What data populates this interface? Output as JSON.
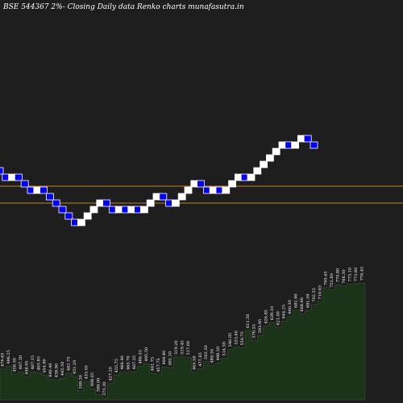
{
  "title": "BSE 544367 2%- Closing Daily data Renko charts munafasutra.in",
  "colors": {
    "background": "#1e1e1e",
    "up_brick": "#ffffff",
    "down_brick": "#0000ff",
    "down_brick_border": "#ffffff",
    "hline": "#c8801a",
    "volume_fill": "#1b3318",
    "volume_stroke": "#3a5a30",
    "label": "#ffffff"
  },
  "chart_data": [
    {
      "type": "renko",
      "brick_percent": 2,
      "direction": [
        "d",
        "d",
        "u",
        "d",
        "d",
        "d",
        "u",
        "d",
        "d",
        "d",
        "d",
        "d",
        "d",
        "u",
        "u",
        "u",
        "u",
        "d",
        "d",
        "u",
        "d",
        "u",
        "d",
        "u",
        "u",
        "u",
        "d",
        "d",
        "u",
        "u",
        "u",
        "u",
        "d",
        "d",
        "u",
        "d",
        "u",
        "u",
        "u",
        "d",
        "u",
        "u",
        "u",
        "u",
        "u",
        "u",
        "d",
        "u",
        "u",
        "d",
        "d"
      ],
      "horizontal_lines_level": [
        231,
        252
      ]
    },
    {
      "type": "area",
      "labels": [
        "476.65",
        "486.25",
        "458.30",
        "467.30",
        "448.95",
        "467.15",
        "463.85",
        "454.90",
        "440.40",
        "438.90",
        "445.50",
        "462.75",
        "451.20",
        "399.30",
        "433.05",
        "408.05",
        "389.00",
        "375.30",
        "427.20",
        "455.75",
        "466.40",
        "465.70",
        "467.35",
        "486.55",
        "495.50",
        "461.75",
        "457.75",
        "484.40",
        "481.10",
        "519.20",
        "519.45",
        "517.60",
        "465.50",
        "477.65",
        "502.50",
        "489.30",
        "498.20",
        "514.50",
        "546.05",
        "553.60",
        "550.75",
        "611.50",
        "576.55",
        "593.95",
        "626.85",
        "639.10",
        "621.00",
        "644.25",
        "660.30",
        "681.90",
        "668.90",
        "681.59",
        "702.55",
        "710.93",
        "760.45",
        "752.80",
        "770.80",
        "766.30",
        "773.10",
        "773.80",
        "776.45"
      ],
      "values": [
        476.65,
        486.25,
        458.3,
        467.3,
        448.95,
        467.15,
        463.85,
        454.9,
        440.4,
        438.9,
        445.5,
        462.75,
        451.2,
        399.3,
        433.05,
        408.05,
        389.0,
        375.3,
        427.2,
        455.75,
        466.4,
        465.7,
        467.35,
        486.55,
        495.5,
        461.75,
        457.75,
        484.4,
        481.1,
        519.2,
        519.45,
        517.6,
        465.5,
        477.65,
        502.5,
        489.3,
        498.2,
        514.5,
        546.05,
        553.6,
        550.75,
        611.5,
        576.55,
        593.95,
        626.85,
        639.1,
        621.0,
        644.25,
        660.3,
        681.9,
        668.9,
        681.59,
        702.55,
        710.93,
        760.45,
        752.8,
        770.8,
        766.3,
        773.1,
        773.8,
        776.45
      ]
    }
  ]
}
